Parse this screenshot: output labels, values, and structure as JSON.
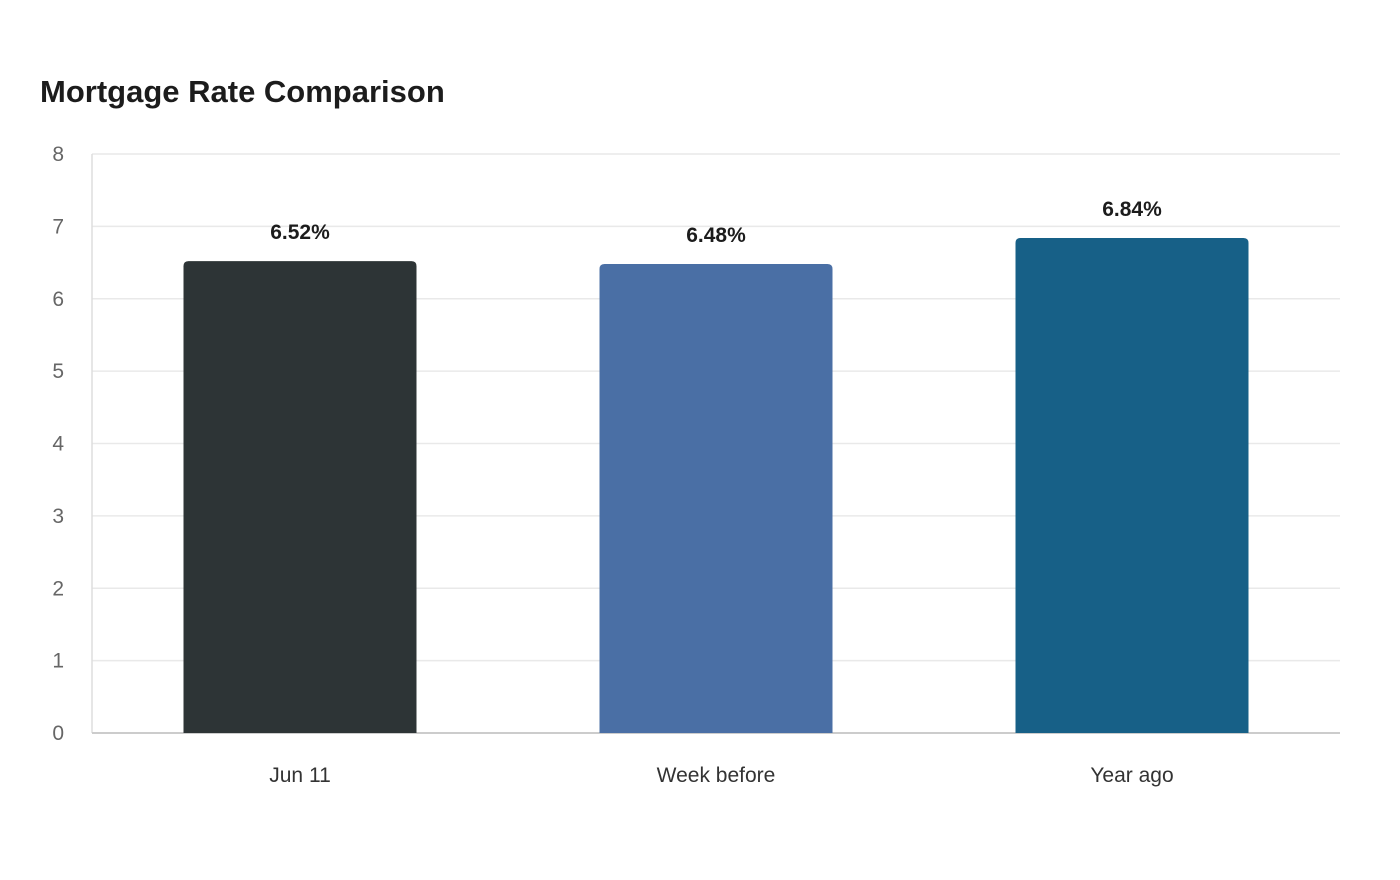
{
  "chart_data": {
    "type": "bar",
    "title": "Mortgage Rate Comparison",
    "xlabel": "",
    "ylabel": "",
    "categories": [
      "Jun 11",
      "Week before",
      "Year ago"
    ],
    "values": [
      6.52,
      6.48,
      6.84
    ],
    "value_labels": [
      "6.52%",
      "6.48%",
      "6.84%"
    ],
    "colors": [
      "#2d3436",
      "#4a6fa5",
      "#176087"
    ],
    "ylim": [
      0,
      8
    ],
    "yticks": [
      0,
      1,
      2,
      3,
      4,
      5,
      6,
      7,
      8
    ],
    "grid": true,
    "legend": "none"
  }
}
